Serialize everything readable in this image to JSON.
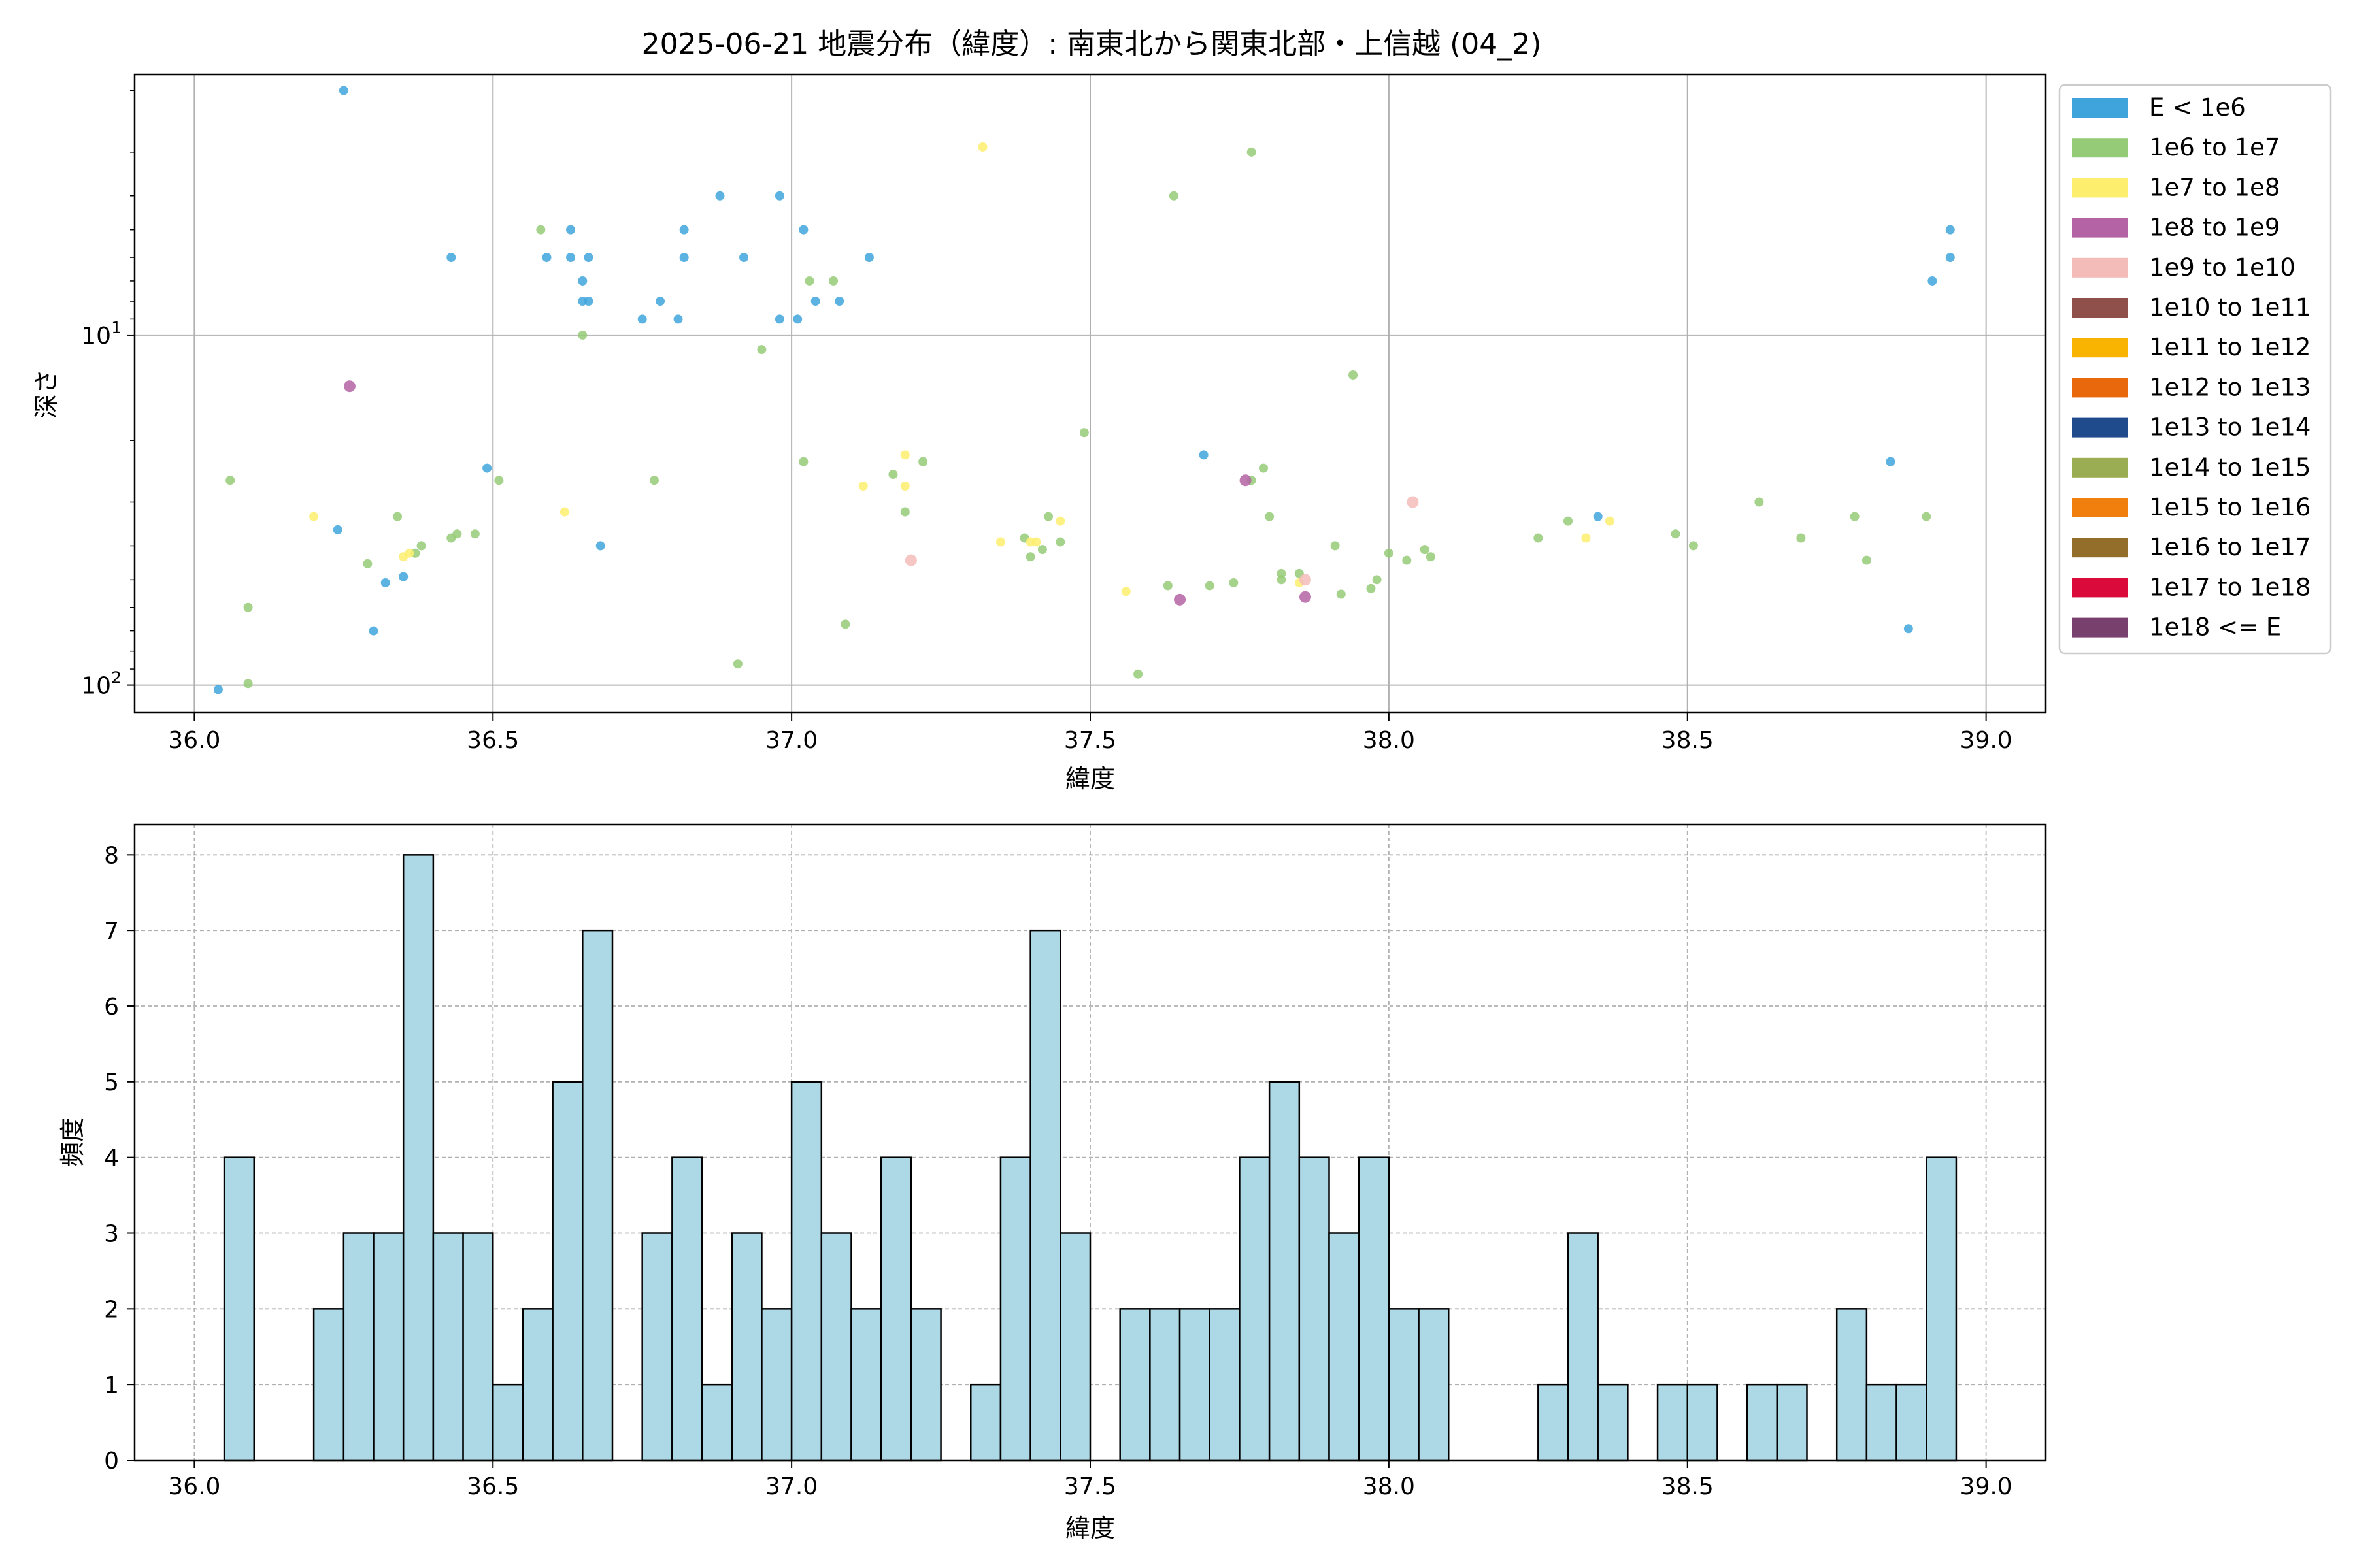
{
  "title": "2025-06-21 地震分布（緯度）: 南東北から関東北部・上信越 (04_2)",
  "chart_data": [
    {
      "type": "scatter",
      "xlabel": "緯度",
      "ylabel": "深さ",
      "xlim": [
        35.9,
        39.1
      ],
      "ylim": [
        120,
        1.8
      ],
      "yscale": "log",
      "y_inverted": true,
      "grid": true,
      "x_ticks": [
        "36.0",
        "36.5",
        "37.0",
        "37.5",
        "38.0",
        "38.5",
        "39.0"
      ],
      "y_ticks": [
        {
          "value": 10,
          "base": "10",
          "exp": "1"
        },
        {
          "value": 100,
          "base": "10",
          "exp": "2"
        }
      ],
      "legend_position": "outside-right-top",
      "legend": [
        {
          "label": "E < 1e6",
          "color": "#3fa4dc"
        },
        {
          "label": "1e6 to 1e7",
          "color": "#95cb77"
        },
        {
          "label": "1e7 to 1e8",
          "color": "#fdee6d"
        },
        {
          "label": "1e8 to 1e9",
          "color": "#b463a5"
        },
        {
          "label": "1e9 to 1e10",
          "color": "#f3bcb9"
        },
        {
          "label": "1e10 to 1e11",
          "color": "#8f4f4b"
        },
        {
          "label": "1e11 to 1e12",
          "color": "#f8b400"
        },
        {
          "label": "1e12 to 1e13",
          "color": "#e9680b"
        },
        {
          "label": "1e13 to 1e14",
          "color": "#1f4a8c"
        },
        {
          "label": "1e14 to 1e15",
          "color": "#9bad52"
        },
        {
          "label": "1e15 to 1e16",
          "color": "#f07f0e"
        },
        {
          "label": "1e16 to 1e17",
          "color": "#936e2a"
        },
        {
          "label": "1e17 to 1e18",
          "color": "#da0b3a"
        },
        {
          "label": "1e18 <= E",
          "color": "#78406d"
        }
      ],
      "points": [
        {
          "x": 36.04,
          "y": 103,
          "c": 0
        },
        {
          "x": 36.25,
          "y": 2.0,
          "c": 0
        },
        {
          "x": 36.43,
          "y": 6.0,
          "c": 0
        },
        {
          "x": 36.24,
          "y": 36,
          "c": 0
        },
        {
          "x": 36.3,
          "y": 70,
          "c": 0
        },
        {
          "x": 36.32,
          "y": 51,
          "c": 0
        },
        {
          "x": 36.35,
          "y": 49,
          "c": 0
        },
        {
          "x": 36.49,
          "y": 24,
          "c": 0
        },
        {
          "x": 36.59,
          "y": 6.0,
          "c": 0
        },
        {
          "x": 36.63,
          "y": 5.0,
          "c": 0
        },
        {
          "x": 36.63,
          "y": 6.0,
          "c": 0
        },
        {
          "x": 36.65,
          "y": 7.0,
          "c": 0
        },
        {
          "x": 36.65,
          "y": 8.0,
          "c": 0
        },
        {
          "x": 36.66,
          "y": 8.0,
          "c": 0
        },
        {
          "x": 36.66,
          "y": 6.0,
          "c": 0
        },
        {
          "x": 36.68,
          "y": 40,
          "c": 0
        },
        {
          "x": 36.75,
          "y": 9.0,
          "c": 0
        },
        {
          "x": 36.78,
          "y": 8.0,
          "c": 0
        },
        {
          "x": 36.81,
          "y": 9.0,
          "c": 0
        },
        {
          "x": 36.82,
          "y": 6.0,
          "c": 0
        },
        {
          "x": 36.82,
          "y": 5.0,
          "c": 0
        },
        {
          "x": 36.88,
          "y": 4.0,
          "c": 0
        },
        {
          "x": 36.92,
          "y": 6.0,
          "c": 0
        },
        {
          "x": 36.98,
          "y": 4.0,
          "c": 0
        },
        {
          "x": 36.98,
          "y": 9.0,
          "c": 0
        },
        {
          "x": 37.01,
          "y": 9.0,
          "c": 0
        },
        {
          "x": 37.02,
          "y": 5.0,
          "c": 0
        },
        {
          "x": 37.04,
          "y": 8.0,
          "c": 0
        },
        {
          "x": 37.08,
          "y": 8.0,
          "c": 0
        },
        {
          "x": 37.13,
          "y": 6.0,
          "c": 0
        },
        {
          "x": 37.69,
          "y": 22,
          "c": 0
        },
        {
          "x": 38.35,
          "y": 33,
          "c": 0
        },
        {
          "x": 38.84,
          "y": 23,
          "c": 0
        },
        {
          "x": 38.87,
          "y": 69,
          "c": 0
        },
        {
          "x": 38.91,
          "y": 7.0,
          "c": 0
        },
        {
          "x": 38.94,
          "y": 6.0,
          "c": 0
        },
        {
          "x": 38.94,
          "y": 5.0,
          "c": 0
        },
        {
          "x": 36.06,
          "y": 26,
          "c": 1
        },
        {
          "x": 36.09,
          "y": 60,
          "c": 1
        },
        {
          "x": 36.09,
          "y": 99,
          "c": 1
        },
        {
          "x": 36.29,
          "y": 45,
          "c": 1
        },
        {
          "x": 36.34,
          "y": 33,
          "c": 1
        },
        {
          "x": 36.37,
          "y": 42,
          "c": 1
        },
        {
          "x": 36.38,
          "y": 40,
          "c": 1
        },
        {
          "x": 36.43,
          "y": 38,
          "c": 1
        },
        {
          "x": 36.44,
          "y": 37,
          "c": 1
        },
        {
          "x": 36.47,
          "y": 37,
          "c": 1
        },
        {
          "x": 36.51,
          "y": 26,
          "c": 1
        },
        {
          "x": 36.58,
          "y": 5.0,
          "c": 1
        },
        {
          "x": 36.65,
          "y": 10,
          "c": 1
        },
        {
          "x": 36.77,
          "y": 26,
          "c": 1
        },
        {
          "x": 36.91,
          "y": 87,
          "c": 1
        },
        {
          "x": 36.95,
          "y": 11,
          "c": 1
        },
        {
          "x": 37.02,
          "y": 23,
          "c": 1
        },
        {
          "x": 37.03,
          "y": 7.0,
          "c": 1
        },
        {
          "x": 37.07,
          "y": 7.0,
          "c": 1
        },
        {
          "x": 37.09,
          "y": 67,
          "c": 1
        },
        {
          "x": 37.17,
          "y": 25,
          "c": 1
        },
        {
          "x": 37.19,
          "y": 32,
          "c": 1
        },
        {
          "x": 37.22,
          "y": 23,
          "c": 1
        },
        {
          "x": 37.39,
          "y": 38,
          "c": 1
        },
        {
          "x": 37.4,
          "y": 43,
          "c": 1
        },
        {
          "x": 37.42,
          "y": 41,
          "c": 1
        },
        {
          "x": 37.43,
          "y": 33,
          "c": 1
        },
        {
          "x": 37.45,
          "y": 39,
          "c": 1
        },
        {
          "x": 37.49,
          "y": 19,
          "c": 1
        },
        {
          "x": 37.58,
          "y": 93,
          "c": 1
        },
        {
          "x": 37.63,
          "y": 52,
          "c": 1
        },
        {
          "x": 37.64,
          "y": 4.0,
          "c": 1
        },
        {
          "x": 37.7,
          "y": 52,
          "c": 1
        },
        {
          "x": 37.74,
          "y": 51,
          "c": 1
        },
        {
          "x": 37.77,
          "y": 3.0,
          "c": 1
        },
        {
          "x": 37.77,
          "y": 26,
          "c": 1
        },
        {
          "x": 37.79,
          "y": 24,
          "c": 1
        },
        {
          "x": 37.8,
          "y": 33,
          "c": 1
        },
        {
          "x": 37.82,
          "y": 48,
          "c": 1
        },
        {
          "x": 37.82,
          "y": 50,
          "c": 1
        },
        {
          "x": 37.85,
          "y": 48,
          "c": 1
        },
        {
          "x": 37.91,
          "y": 40,
          "c": 1
        },
        {
          "x": 37.92,
          "y": 55,
          "c": 1
        },
        {
          "x": 37.94,
          "y": 13,
          "c": 1
        },
        {
          "x": 37.97,
          "y": 53,
          "c": 1
        },
        {
          "x": 37.98,
          "y": 50,
          "c": 1
        },
        {
          "x": 38.0,
          "y": 42,
          "c": 1
        },
        {
          "x": 38.03,
          "y": 44,
          "c": 1
        },
        {
          "x": 38.06,
          "y": 41,
          "c": 1
        },
        {
          "x": 38.07,
          "y": 43,
          "c": 1
        },
        {
          "x": 38.25,
          "y": 38,
          "c": 1
        },
        {
          "x": 38.3,
          "y": 34,
          "c": 1
        },
        {
          "x": 38.48,
          "y": 37,
          "c": 1
        },
        {
          "x": 38.51,
          "y": 40,
          "c": 1
        },
        {
          "x": 38.62,
          "y": 30,
          "c": 1
        },
        {
          "x": 38.69,
          "y": 38,
          "c": 1
        },
        {
          "x": 38.78,
          "y": 33,
          "c": 1
        },
        {
          "x": 38.8,
          "y": 44,
          "c": 1
        },
        {
          "x": 38.9,
          "y": 33,
          "c": 1
        },
        {
          "x": 36.2,
          "y": 33,
          "c": 2
        },
        {
          "x": 36.35,
          "y": 43,
          "c": 2
        },
        {
          "x": 36.36,
          "y": 42,
          "c": 2
        },
        {
          "x": 36.62,
          "y": 32,
          "c": 2
        },
        {
          "x": 37.12,
          "y": 27,
          "c": 2
        },
        {
          "x": 37.19,
          "y": 22,
          "c": 2
        },
        {
          "x": 37.19,
          "y": 27,
          "c": 2
        },
        {
          "x": 37.32,
          "y": 2.9,
          "c": 2
        },
        {
          "x": 37.35,
          "y": 39,
          "c": 2
        },
        {
          "x": 37.4,
          "y": 39,
          "c": 2
        },
        {
          "x": 37.41,
          "y": 39,
          "c": 2
        },
        {
          "x": 37.45,
          "y": 34,
          "c": 2
        },
        {
          "x": 37.56,
          "y": 54,
          "c": 2
        },
        {
          "x": 37.85,
          "y": 51,
          "c": 2
        },
        {
          "x": 38.33,
          "y": 38,
          "c": 2
        },
        {
          "x": 38.37,
          "y": 34,
          "c": 2
        },
        {
          "x": 36.26,
          "y": 14,
          "c": 3
        },
        {
          "x": 37.65,
          "y": 57,
          "c": 3
        },
        {
          "x": 37.76,
          "y": 26,
          "c": 3
        },
        {
          "x": 37.86,
          "y": 56,
          "c": 3
        },
        {
          "x": 37.2,
          "y": 44,
          "c": 4
        },
        {
          "x": 37.86,
          "y": 50,
          "c": 4
        },
        {
          "x": 38.04,
          "y": 30,
          "c": 4
        }
      ]
    },
    {
      "type": "bar",
      "xlabel": "緯度",
      "ylabel": "頻度",
      "xlim": [
        35.9,
        39.1
      ],
      "ylim": [
        0,
        8.4
      ],
      "grid": true,
      "bar_color": "#add8e6",
      "edge_color": "#000000",
      "bin_start": 36.05,
      "bin_width": 0.05,
      "x_ticks": [
        "36.0",
        "36.5",
        "37.0",
        "37.5",
        "38.0",
        "38.5",
        "39.0"
      ],
      "y_ticks": [
        "0",
        "1",
        "2",
        "3",
        "4",
        "5",
        "6",
        "7",
        "8"
      ],
      "values": [
        4,
        0,
        0,
        2,
        3,
        3,
        8,
        3,
        3,
        1,
        2,
        5,
        7,
        0,
        3,
        4,
        1,
        3,
        2,
        5,
        3,
        2,
        4,
        2,
        0,
        1,
        4,
        7,
        3,
        0,
        2,
        2,
        2,
        2,
        4,
        5,
        4,
        3,
        4,
        2,
        2,
        0,
        0,
        0,
        1,
        3,
        1,
        0,
        1,
        1,
        0,
        1,
        1,
        0,
        2,
        1,
        1,
        4
      ]
    }
  ]
}
